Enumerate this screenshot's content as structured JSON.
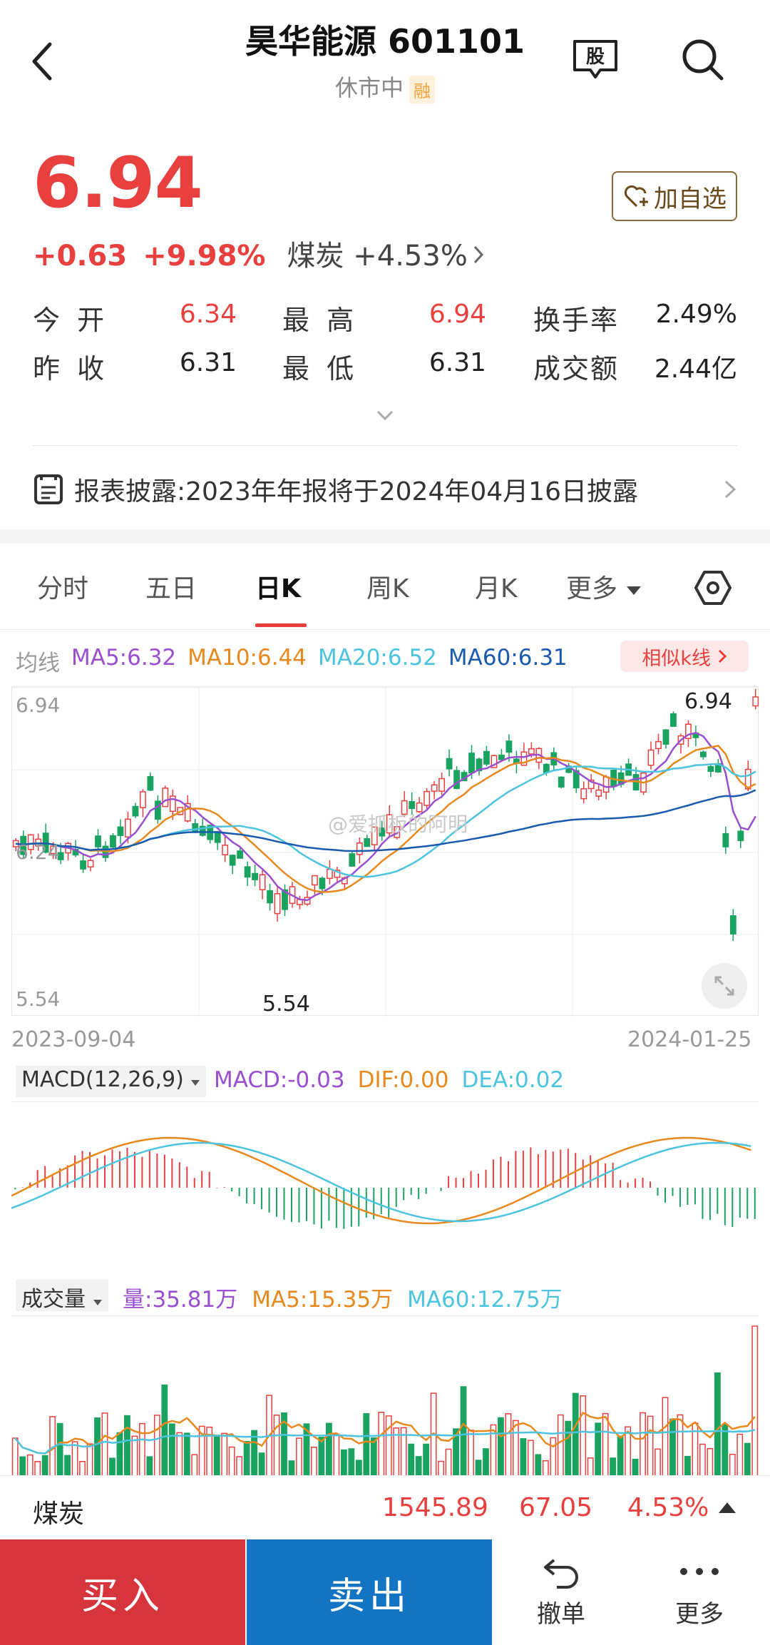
{
  "header": {
    "title": "昊华能源 601101",
    "status": "休市中",
    "margin_badge": "融",
    "gu_label": "股"
  },
  "quote": {
    "price": "6.94",
    "change": "+0.63",
    "change_pct": "+9.98%",
    "sector": "煤炭",
    "sector_pct": "+4.53%",
    "watch_label": "加自选"
  },
  "stats": {
    "open_label": "今 开",
    "open_val": "6.34",
    "high_label": "最 高",
    "high_val": "6.94",
    "turnover_rate_label": "换手率",
    "turnover_rate_val": "2.49%",
    "prev_close_label": "昨 收",
    "prev_close_val": "6.31",
    "low_label": "最 低",
    "low_val": "6.31",
    "turnover_amt_label": "成交额",
    "turnover_amt_val": "2.44亿"
  },
  "report": {
    "text": "报表披露:2023年年报将于2024年04月16日披露"
  },
  "tabs": [
    "分时",
    "五日",
    "日K",
    "周K",
    "月K",
    "更多"
  ],
  "ma_legend": {
    "label": "均线",
    "ma5": "MA5:6.32",
    "ma10": "MA10:6.44",
    "ma20": "MA20:6.52",
    "ma60": "MA60:6.31",
    "similar": "相似k线"
  },
  "colors": {
    "up": "#e8403f",
    "down": "#1aa260",
    "ma5": "#9b4fd0",
    "ma10": "#e8891e",
    "ma20": "#4cc4df",
    "ma60": "#1a5bb0"
  },
  "kline": {
    "y_top": "6.94",
    "y_mid": "6.24",
    "y_bot": "5.54",
    "high_marker": "6.94",
    "low_marker": "5.54",
    "date_start": "2023-09-04",
    "date_end": "2024-01-25"
  },
  "macd": {
    "selector": "MACD(12,26,9)",
    "macd": "MACD:-0.03",
    "dif": "DIF:0.00",
    "dea": "DEA:0.02"
  },
  "volume": {
    "selector": "成交量",
    "vol": "量:35.81万",
    "ma5": "MA5:15.35万",
    "ma60": "MA60:12.75万"
  },
  "sector_bar": {
    "name": "煤炭",
    "index": "1545.89",
    "change": "67.05",
    "pct": "4.53%"
  },
  "actions": {
    "buy": "买入",
    "sell": "卖出",
    "cancel": "撤单",
    "more": "更多"
  },
  "watermark": "@爱抓板的阿明"
}
